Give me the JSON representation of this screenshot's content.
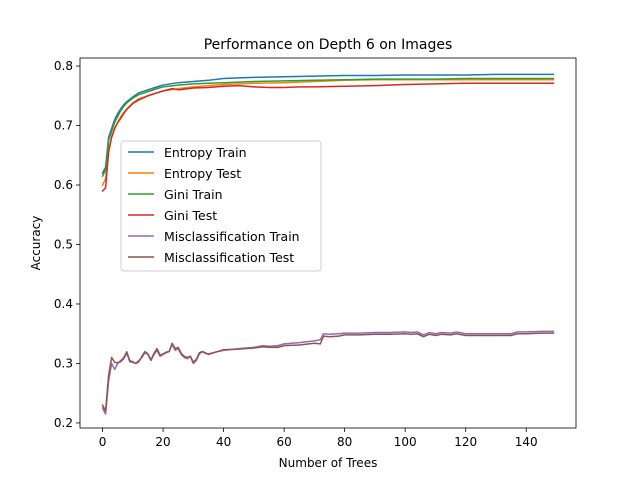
{
  "chart_data": {
    "type": "line",
    "title": "Performance on Depth 6 on Images",
    "xlabel": "Number of Trees",
    "ylabel": "Accuracy",
    "xlim": [
      -7.45,
      156.45
    ],
    "ylim": [
      0.1915,
      0.8135
    ],
    "xticks": [
      0,
      20,
      40,
      60,
      80,
      100,
      120,
      140
    ],
    "yticks": [
      0.2,
      0.3,
      0.4,
      0.5,
      0.6,
      0.7,
      0.8
    ],
    "xtick_labels": [
      "0",
      "20",
      "40",
      "60",
      "80",
      "100",
      "120",
      "140"
    ],
    "ytick_labels": [
      "0.2",
      "0.3",
      "0.4",
      "0.5",
      "0.6",
      "0.7",
      "0.8"
    ],
    "grid": false,
    "legend_position": "center-left",
    "series": [
      {
        "name": "Entropy Train",
        "color": "#1f77b4",
        "x": [
          0,
          1,
          2,
          3,
          4,
          5,
          6,
          7,
          8,
          10,
          12,
          15,
          18,
          20,
          25,
          30,
          35,
          40,
          45,
          50,
          60,
          70,
          80,
          90,
          100,
          110,
          120,
          130,
          140,
          149
        ],
        "y": [
          0.62,
          0.63,
          0.68,
          0.695,
          0.71,
          0.72,
          0.728,
          0.735,
          0.74,
          0.748,
          0.755,
          0.76,
          0.765,
          0.768,
          0.772,
          0.774,
          0.776,
          0.779,
          0.78,
          0.781,
          0.782,
          0.783,
          0.784,
          0.784,
          0.785,
          0.785,
          0.785,
          0.786,
          0.786,
          0.786
        ]
      },
      {
        "name": "Entropy Test",
        "color": "#ff7f0e",
        "x": [
          0,
          1,
          2,
          3,
          4,
          5,
          6,
          7,
          8,
          10,
          12,
          15,
          18,
          20,
          25,
          30,
          35,
          40,
          45,
          50,
          60,
          70,
          80,
          90,
          100,
          110,
          120,
          130,
          140,
          149
        ],
        "y": [
          0.6,
          0.61,
          0.66,
          0.68,
          0.695,
          0.705,
          0.715,
          0.722,
          0.728,
          0.738,
          0.745,
          0.75,
          0.755,
          0.758,
          0.762,
          0.765,
          0.767,
          0.769,
          0.77,
          0.771,
          0.772,
          0.774,
          0.776,
          0.777,
          0.777,
          0.777,
          0.777,
          0.777,
          0.777,
          0.777
        ]
      },
      {
        "name": "Gini Train",
        "color": "#2ca02c",
        "x": [
          0,
          1,
          2,
          3,
          4,
          5,
          6,
          7,
          8,
          10,
          12,
          15,
          18,
          20,
          25,
          30,
          35,
          40,
          45,
          50,
          60,
          70,
          80,
          90,
          100,
          110,
          120,
          130,
          140,
          149
        ],
        "y": [
          0.615,
          0.625,
          0.675,
          0.69,
          0.705,
          0.715,
          0.725,
          0.732,
          0.738,
          0.746,
          0.752,
          0.757,
          0.762,
          0.765,
          0.768,
          0.77,
          0.771,
          0.772,
          0.773,
          0.774,
          0.775,
          0.776,
          0.777,
          0.778,
          0.778,
          0.778,
          0.779,
          0.779,
          0.779,
          0.779
        ]
      },
      {
        "name": "Gini Test",
        "color": "#d62728",
        "x": [
          0,
          1,
          2,
          3,
          4,
          5,
          6,
          7,
          8,
          10,
          12,
          15,
          18,
          20,
          23,
          25,
          30,
          35,
          40,
          45,
          50,
          55,
          60,
          65,
          70,
          80,
          90,
          100,
          110,
          120,
          130,
          140,
          149
        ],
        "y": [
          0.59,
          0.595,
          0.655,
          0.68,
          0.695,
          0.705,
          0.712,
          0.72,
          0.727,
          0.737,
          0.743,
          0.75,
          0.755,
          0.758,
          0.762,
          0.76,
          0.763,
          0.764,
          0.766,
          0.767,
          0.765,
          0.764,
          0.764,
          0.765,
          0.765,
          0.766,
          0.767,
          0.769,
          0.77,
          0.771,
          0.771,
          0.771,
          0.771
        ]
      },
      {
        "name": "Misclassification Train",
        "color": "#9467bd",
        "x": [
          0,
          1,
          2,
          3,
          4,
          5,
          6,
          7,
          8,
          9,
          10,
          11,
          12,
          13,
          14,
          15,
          16,
          17,
          18,
          19,
          20,
          21,
          22,
          23,
          24,
          25,
          26,
          27,
          28,
          29,
          30,
          31,
          32,
          33,
          34,
          35,
          38,
          40,
          45,
          50,
          53,
          55,
          58,
          60,
          65,
          70,
          72,
          73,
          75,
          78,
          80,
          85,
          90,
          95,
          100,
          102,
          104,
          106,
          108,
          110,
          112,
          115,
          117,
          120,
          125,
          130,
          135,
          137,
          140,
          145,
          149
        ],
        "y": [
          0.225,
          0.215,
          0.27,
          0.3,
          0.29,
          0.3,
          0.305,
          0.31,
          0.32,
          0.305,
          0.303,
          0.3,
          0.305,
          0.31,
          0.318,
          0.315,
          0.305,
          0.315,
          0.322,
          0.312,
          0.315,
          0.318,
          0.32,
          0.332,
          0.322,
          0.325,
          0.315,
          0.31,
          0.308,
          0.312,
          0.3,
          0.305,
          0.316,
          0.32,
          0.318,
          0.315,
          0.32,
          0.322,
          0.325,
          0.327,
          0.33,
          0.329,
          0.33,
          0.333,
          0.335,
          0.338,
          0.34,
          0.35,
          0.349,
          0.35,
          0.351,
          0.351,
          0.352,
          0.352,
          0.353,
          0.352,
          0.353,
          0.348,
          0.352,
          0.35,
          0.352,
          0.351,
          0.353,
          0.35,
          0.35,
          0.35,
          0.35,
          0.353,
          0.353,
          0.354,
          0.354
        ]
      },
      {
        "name": "Misclassification Test",
        "color": "#8c564b",
        "x": [
          0,
          1,
          2,
          3,
          4,
          5,
          6,
          7,
          8,
          9,
          10,
          11,
          12,
          13,
          14,
          15,
          16,
          17,
          18,
          19,
          20,
          21,
          22,
          23,
          24,
          25,
          26,
          27,
          28,
          29,
          30,
          31,
          32,
          33,
          34,
          35,
          38,
          40,
          45,
          50,
          53,
          55,
          58,
          60,
          65,
          70,
          72,
          73,
          75,
          78,
          80,
          85,
          90,
          95,
          100,
          102,
          104,
          106,
          108,
          110,
          112,
          115,
          117,
          120,
          125,
          130,
          135,
          137,
          140,
          145,
          149
        ],
        "y": [
          0.23,
          0.22,
          0.28,
          0.31,
          0.302,
          0.301,
          0.303,
          0.308,
          0.318,
          0.303,
          0.302,
          0.3,
          0.303,
          0.312,
          0.32,
          0.316,
          0.306,
          0.317,
          0.325,
          0.314,
          0.316,
          0.319,
          0.32,
          0.334,
          0.325,
          0.327,
          0.317,
          0.312,
          0.31,
          0.312,
          0.302,
          0.307,
          0.318,
          0.32,
          0.317,
          0.316,
          0.32,
          0.323,
          0.324,
          0.326,
          0.328,
          0.327,
          0.327,
          0.33,
          0.331,
          0.334,
          0.333,
          0.346,
          0.345,
          0.346,
          0.348,
          0.348,
          0.349,
          0.349,
          0.35,
          0.349,
          0.35,
          0.345,
          0.349,
          0.347,
          0.349,
          0.348,
          0.35,
          0.347,
          0.347,
          0.347,
          0.347,
          0.35,
          0.35,
          0.351,
          0.351
        ]
      }
    ]
  }
}
